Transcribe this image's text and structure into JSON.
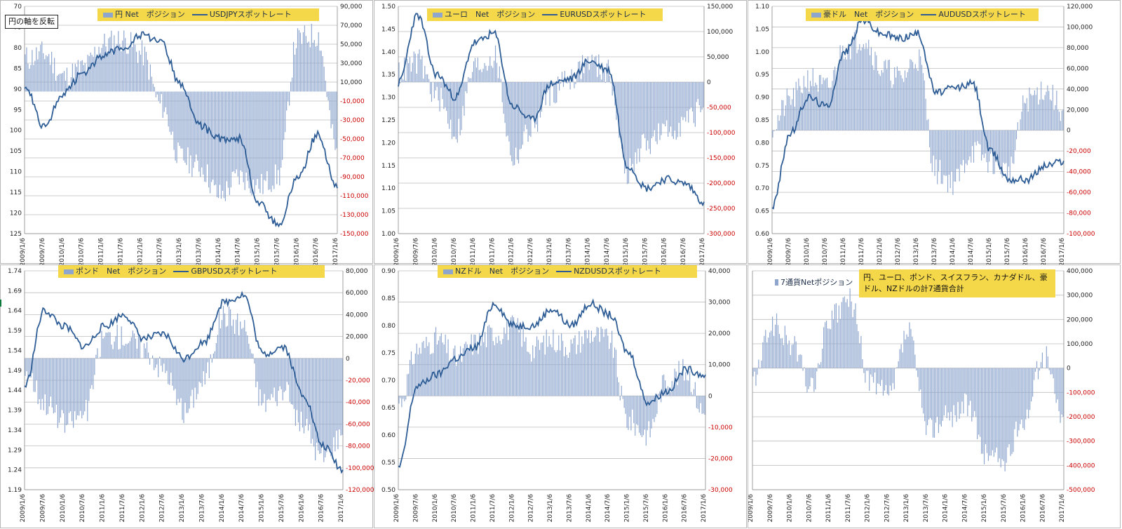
{
  "note_inverted": "円の軸を反転",
  "dates": [
    "2009/1/6",
    "2009/7/6",
    "2010/1/6",
    "2010/7/6",
    "2011/1/6",
    "2011/7/6",
    "2012/1/6",
    "2012/7/6",
    "2013/1/6",
    "2013/7/6",
    "2014/1/6",
    "2014/7/6",
    "2015/1/6",
    "2015/7/6",
    "2016/1/6",
    "2016/7/6",
    "2017/1/6"
  ],
  "chart_data": [
    {
      "type": "bar",
      "id": "jpy",
      "legend_bar": "円 Net　ポジション",
      "legend_line": "USDJPYスポットレート",
      "left_axis": {
        "min": 70,
        "max": 125,
        "step": 5,
        "inverted": true,
        "labels": [
          "70",
          "75",
          "80",
          "85",
          "90",
          "95",
          "100",
          "105",
          "110",
          "115",
          "120",
          "125"
        ]
      },
      "right_axis": {
        "min": -150000,
        "max": 90000,
        "labels": [
          "90,000",
          "70,000",
          "50,000",
          "30,000",
          "10,000",
          "-10,000",
          "-30,000",
          "-50,000",
          "-70,000",
          "-90,000",
          "-110,000",
          "-130,000",
          "-150,000"
        ]
      },
      "line_values": [
        89,
        99,
        91,
        86,
        82,
        80,
        77,
        79,
        89,
        99,
        102,
        102,
        118,
        123,
        111,
        101,
        114
      ],
      "bar_values": [
        35000,
        40000,
        15000,
        25000,
        50000,
        55000,
        40000,
        -15000,
        -70000,
        -80000,
        -110000,
        -90000,
        -100000,
        -90000,
        55000,
        60000,
        -60000
      ]
    },
    {
      "type": "bar",
      "id": "eur",
      "legend_bar": "ユーロ　Net　ポジション",
      "legend_line": "EURUSDスポットレート",
      "left_axis": {
        "min": 1.0,
        "max": 1.5,
        "step": 0.05,
        "inverted": false,
        "labels": [
          "1.00",
          "1.05",
          "1.10",
          "1.15",
          "1.20",
          "1.25",
          "1.30",
          "1.35",
          "1.40",
          "1.45",
          "1.50"
        ]
      },
      "right_axis": {
        "min": -300000,
        "max": 150000,
        "labels": [
          "150,000",
          "100,000",
          "50,000",
          "0",
          "-50,000",
          "-100,000",
          "-150,000",
          "-200,000",
          "-250,000",
          "-300,000"
        ]
      },
      "line_values": [
        1.33,
        1.48,
        1.35,
        1.3,
        1.42,
        1.44,
        1.28,
        1.25,
        1.33,
        1.34,
        1.38,
        1.36,
        1.15,
        1.1,
        1.12,
        1.11,
        1.07
      ],
      "bar_values": [
        20000,
        40000,
        -30000,
        -100000,
        30000,
        50000,
        -150000,
        -90000,
        -20000,
        10000,
        40000,
        20000,
        -180000,
        -120000,
        -100000,
        -80000,
        -50000
      ]
    },
    {
      "type": "bar",
      "id": "aud",
      "legend_bar": "豪ドル　Net　ポジション",
      "legend_line": "AUDUSDスポットレート",
      "left_axis": {
        "min": 0.6,
        "max": 1.1,
        "step": 0.05,
        "inverted": false,
        "labels": [
          "0.60",
          "0.65",
          "0.70",
          "0.75",
          "0.80",
          "0.85",
          "0.90",
          "0.95",
          "1.00",
          "1.05",
          "1.10"
        ]
      },
      "right_axis": {
        "min": -100000,
        "max": 120000,
        "labels": [
          "120,000",
          "100,000",
          "80,000",
          "60,000",
          "40,000",
          "20,000",
          "0",
          "-20,000",
          "-40,000",
          "-60,000",
          "-80,000",
          "-100,000"
        ]
      },
      "line_values": [
        0.66,
        0.82,
        0.9,
        0.88,
        1.0,
        1.07,
        1.04,
        1.03,
        1.04,
        0.91,
        0.92,
        0.93,
        0.78,
        0.72,
        0.72,
        0.75,
        0.76
      ],
      "bar_values": [
        5000,
        30000,
        50000,
        40000,
        80000,
        90000,
        60000,
        50000,
        70000,
        -40000,
        -50000,
        -20000,
        -30000,
        -40000,
        30000,
        40000,
        20000
      ]
    },
    {
      "type": "bar",
      "id": "gbp",
      "legend_bar": "ポンド　Net　ポジション",
      "legend_line": "GBPUSDスポットレート",
      "left_axis": {
        "min": 1.19,
        "max": 1.74,
        "step": 0.05,
        "inverted": false,
        "labels": [
          "1.19",
          "1.24",
          "1.29",
          "1.34",
          "1.39",
          "1.44",
          "1.49",
          "1.54",
          "1.59",
          "1.64",
          "1.69",
          "1.74"
        ]
      },
      "right_axis": {
        "min": -120000,
        "max": 80000,
        "labels": [
          "80,000",
          "60,000",
          "40,000",
          "20,000",
          "0",
          "-20,000",
          "-40,000",
          "-60,000",
          "-80,000",
          "-100,000",
          "-120,000"
        ]
      },
      "line_values": [
        1.45,
        1.64,
        1.6,
        1.55,
        1.6,
        1.63,
        1.57,
        1.58,
        1.52,
        1.56,
        1.66,
        1.68,
        1.53,
        1.55,
        1.43,
        1.3,
        1.24
      ],
      "bar_values": [
        -10000,
        -40000,
        -60000,
        -50000,
        20000,
        20000,
        10000,
        -10000,
        -50000,
        -20000,
        40000,
        30000,
        -40000,
        -30000,
        -60000,
        -90000,
        -70000
      ]
    },
    {
      "type": "bar",
      "id": "nzd",
      "legend_bar": "NZドル　Net　ポジション",
      "legend_line": "NZDUSDスポットレート",
      "left_axis": {
        "min": 0.5,
        "max": 0.9,
        "step": 0.05,
        "inverted": false,
        "labels": [
          "0.50",
          "0.55",
          "0.60",
          "0.65",
          "0.70",
          "0.75",
          "0.80",
          "0.85",
          "0.90"
        ]
      },
      "right_axis": {
        "min": -30000,
        "max": 40000,
        "labels": [
          "40,000",
          "30,000",
          "20,000",
          "10,000",
          "0",
          "-10,000",
          "-20,000",
          "-30,000"
        ]
      },
      "line_values": [
        0.54,
        0.69,
        0.71,
        0.74,
        0.76,
        0.84,
        0.8,
        0.8,
        0.83,
        0.8,
        0.84,
        0.82,
        0.75,
        0.66,
        0.68,
        0.72,
        0.71
      ],
      "bar_values": [
        -2000,
        15000,
        18000,
        12000,
        17000,
        20000,
        22000,
        15000,
        18000,
        16000,
        20000,
        18000,
        -8000,
        -12000,
        5000,
        8000,
        -6000
      ]
    },
    {
      "type": "bar",
      "id": "total",
      "legend_bar": "7通貨Netポジション",
      "note": "円、ユーロ、ポンド、スイスフラン、カナダドル、豪ドル、NZドルの計7通貨合計",
      "right_axis": {
        "min": -500000,
        "max": 400000,
        "labels": [
          "400,000",
          "300,000",
          "200,000",
          "100,000",
          "0",
          "-100,000",
          "-200,000",
          "-300,000",
          "-400,000",
          "-500,000"
        ]
      },
      "bar_values": [
        -50000,
        180000,
        100000,
        -80000,
        200000,
        280000,
        -50000,
        -120000,
        150000,
        -250000,
        -200000,
        -150000,
        -350000,
        -380000,
        -200000,
        50000,
        -200000
      ]
    }
  ]
}
